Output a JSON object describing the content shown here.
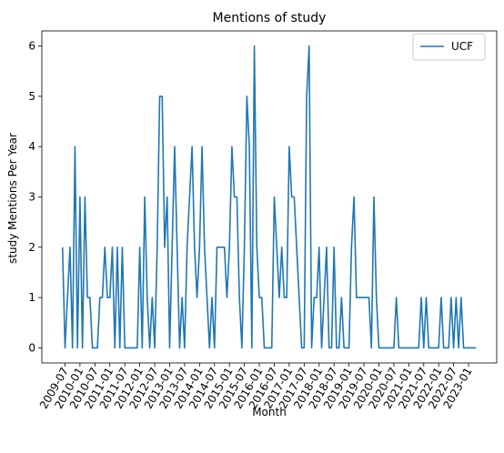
{
  "chart_data": {
    "type": "line",
    "title": "Mentions of study",
    "xlabel": "Month",
    "ylabel": "study Mentions Per Year",
    "ylim": [
      -0.3,
      6.3
    ],
    "yticks": [
      0,
      1,
      2,
      3,
      4,
      5,
      6
    ],
    "xticks": [
      "2009-07",
      "2010-01",
      "2010-07",
      "2011-01",
      "2011-07",
      "2012-01",
      "2012-07",
      "2013-01",
      "2013-07",
      "2014-01",
      "2014-07",
      "2015-01",
      "2015-07",
      "2016-01",
      "2016-07",
      "2017-01",
      "2017-07",
      "2018-01",
      "2018-07",
      "2019-01",
      "2019-07",
      "2020-01",
      "2020-07",
      "2021-01",
      "2021-07",
      "2022-01",
      "2022-07",
      "2023-01"
    ],
    "legend_position": "top-right",
    "series": [
      {
        "name": "UCF",
        "color": "#1f77b4",
        "points": [
          [
            "2009-06-01",
            2
          ],
          [
            "2009-07-01",
            0
          ],
          [
            "2009-08-01",
            1
          ],
          [
            "2009-09-01",
            2
          ],
          [
            "2009-10-01",
            0
          ],
          [
            "2009-11-01",
            4
          ],
          [
            "2009-12-01",
            0
          ],
          [
            "2010-01-01",
            3
          ],
          [
            "2010-02-01",
            0
          ],
          [
            "2010-03-01",
            3
          ],
          [
            "2010-04-01",
            1
          ],
          [
            "2010-05-01",
            1
          ],
          [
            "2010-06-01",
            0
          ],
          [
            "2010-07-01",
            0
          ],
          [
            "2010-08-01",
            0
          ],
          [
            "2010-09-01",
            1
          ],
          [
            "2010-10-01",
            1
          ],
          [
            "2010-11-01",
            2
          ],
          [
            "2010-12-01",
            1
          ],
          [
            "2011-01-01",
            1
          ],
          [
            "2011-02-01",
            2
          ],
          [
            "2011-03-01",
            0
          ],
          [
            "2011-04-01",
            2
          ],
          [
            "2011-05-01",
            0
          ],
          [
            "2011-06-01",
            2
          ],
          [
            "2011-07-01",
            0
          ],
          [
            "2011-08-01",
            0
          ],
          [
            "2011-09-01",
            0
          ],
          [
            "2011-10-01",
            0
          ],
          [
            "2011-11-01",
            0
          ],
          [
            "2011-12-01",
            0
          ],
          [
            "2012-01-01",
            2
          ],
          [
            "2012-02-01",
            0
          ],
          [
            "2012-03-01",
            3
          ],
          [
            "2012-04-01",
            1
          ],
          [
            "2012-05-01",
            0
          ],
          [
            "2012-06-01",
            1
          ],
          [
            "2012-07-01",
            0
          ],
          [
            "2012-08-01",
            2
          ],
          [
            "2012-09-01",
            5
          ],
          [
            "2012-10-01",
            5
          ],
          [
            "2012-11-01",
            2
          ],
          [
            "2012-12-01",
            3
          ],
          [
            "2013-01-01",
            0
          ],
          [
            "2013-02-01",
            2
          ],
          [
            "2013-03-01",
            4
          ],
          [
            "2013-04-01",
            2
          ],
          [
            "2013-05-01",
            0
          ],
          [
            "2013-06-01",
            1
          ],
          [
            "2013-07-01",
            0
          ],
          [
            "2013-08-01",
            2
          ],
          [
            "2013-09-01",
            3
          ],
          [
            "2013-10-01",
            4
          ],
          [
            "2013-11-01",
            2
          ],
          [
            "2013-12-01",
            1
          ],
          [
            "2014-01-01",
            2
          ],
          [
            "2014-02-01",
            4
          ],
          [
            "2014-03-01",
            2
          ],
          [
            "2014-04-01",
            1
          ],
          [
            "2014-05-01",
            0
          ],
          [
            "2014-06-01",
            1
          ],
          [
            "2014-07-01",
            0
          ],
          [
            "2014-08-01",
            2
          ],
          [
            "2014-09-01",
            2
          ],
          [
            "2014-10-01",
            2
          ],
          [
            "2014-11-01",
            2
          ],
          [
            "2014-12-01",
            1
          ],
          [
            "2015-01-01",
            2
          ],
          [
            "2015-02-01",
            4
          ],
          [
            "2015-03-01",
            3
          ],
          [
            "2015-04-01",
            3
          ],
          [
            "2015-05-01",
            1
          ],
          [
            "2015-06-01",
            0
          ],
          [
            "2015-07-01",
            2
          ],
          [
            "2015-08-01",
            5
          ],
          [
            "2015-09-01",
            4
          ],
          [
            "2015-10-01",
            0
          ],
          [
            "2015-11-01",
            6
          ],
          [
            "2015-12-01",
            2
          ],
          [
            "2016-01-01",
            1
          ],
          [
            "2016-02-01",
            1
          ],
          [
            "2016-03-01",
            0
          ],
          [
            "2016-04-01",
            0
          ],
          [
            "2016-05-01",
            0
          ],
          [
            "2016-06-01",
            0
          ],
          [
            "2016-07-01",
            3
          ],
          [
            "2016-08-01",
            2
          ],
          [
            "2016-09-01",
            1
          ],
          [
            "2016-10-01",
            2
          ],
          [
            "2016-11-01",
            1
          ],
          [
            "2016-12-01",
            1
          ],
          [
            "2017-01-01",
            4
          ],
          [
            "2017-02-01",
            3
          ],
          [
            "2017-03-01",
            3
          ],
          [
            "2017-04-01",
            2
          ],
          [
            "2017-05-01",
            1
          ],
          [
            "2017-06-01",
            0
          ],
          [
            "2017-07-01",
            0
          ],
          [
            "2017-08-01",
            5
          ],
          [
            "2017-09-01",
            6
          ],
          [
            "2017-10-01",
            0
          ],
          [
            "2017-11-01",
            1
          ],
          [
            "2017-12-01",
            1
          ],
          [
            "2018-01-01",
            2
          ],
          [
            "2018-02-01",
            0
          ],
          [
            "2018-03-01",
            1
          ],
          [
            "2018-04-01",
            2
          ],
          [
            "2018-05-01",
            0
          ],
          [
            "2018-06-01",
            0
          ],
          [
            "2018-07-01",
            2
          ],
          [
            "2018-08-01",
            0
          ],
          [
            "2018-09-01",
            0
          ],
          [
            "2018-10-01",
            1
          ],
          [
            "2018-11-01",
            0
          ],
          [
            "2018-12-01",
            0
          ],
          [
            "2019-01-01",
            0
          ],
          [
            "2019-02-01",
            2
          ],
          [
            "2019-03-01",
            3
          ],
          [
            "2019-04-01",
            1
          ],
          [
            "2019-05-01",
            1
          ],
          [
            "2019-06-01",
            1
          ],
          [
            "2019-07-01",
            1
          ],
          [
            "2019-08-01",
            1
          ],
          [
            "2019-09-01",
            1
          ],
          [
            "2019-10-01",
            0
          ],
          [
            "2019-11-01",
            3
          ],
          [
            "2019-12-01",
            1
          ],
          [
            "2020-01-01",
            0
          ],
          [
            "2020-02-01",
            0
          ],
          [
            "2020-03-01",
            0
          ],
          [
            "2020-04-01",
            0
          ],
          [
            "2020-05-01",
            0
          ],
          [
            "2020-06-01",
            0
          ],
          [
            "2020-07-01",
            0
          ],
          [
            "2020-08-01",
            1
          ],
          [
            "2020-09-01",
            0
          ],
          [
            "2020-10-01",
            0
          ],
          [
            "2020-11-01",
            0
          ],
          [
            "2020-12-01",
            0
          ],
          [
            "2021-01-01",
            0
          ],
          [
            "2021-02-01",
            0
          ],
          [
            "2021-03-01",
            0
          ],
          [
            "2021-04-01",
            0
          ],
          [
            "2021-05-01",
            0
          ],
          [
            "2021-06-01",
            1
          ],
          [
            "2021-07-01",
            0
          ],
          [
            "2021-08-01",
            1
          ],
          [
            "2021-09-01",
            0
          ],
          [
            "2021-10-01",
            0
          ],
          [
            "2021-11-01",
            0
          ],
          [
            "2021-12-01",
            0
          ],
          [
            "2022-01-01",
            0
          ],
          [
            "2022-02-01",
            1
          ],
          [
            "2022-03-01",
            0
          ],
          [
            "2022-04-01",
            0
          ],
          [
            "2022-05-01",
            0
          ],
          [
            "2022-06-01",
            1
          ],
          [
            "2022-07-01",
            0
          ],
          [
            "2022-08-01",
            1
          ],
          [
            "2022-09-01",
            0
          ],
          [
            "2022-10-01",
            1
          ],
          [
            "2022-11-01",
            0
          ],
          [
            "2022-12-01",
            0
          ],
          [
            "2023-01-01",
            0
          ],
          [
            "2023-02-01",
            0
          ],
          [
            "2023-03-01",
            0
          ],
          [
            "2023-04-01",
            0
          ]
        ]
      }
    ]
  }
}
